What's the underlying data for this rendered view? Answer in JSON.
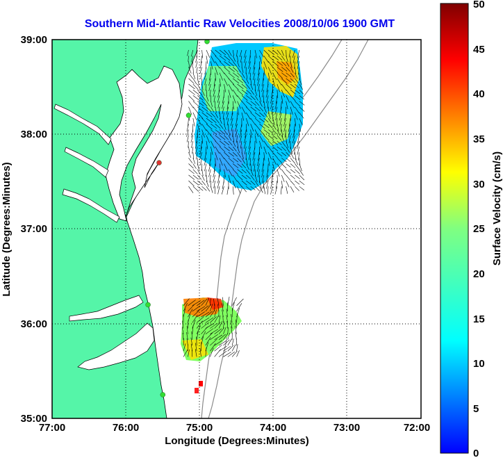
{
  "title": "Southern Mid-Atlantic Raw Velocities 2008/10/06 1900 GMT",
  "x_axis": {
    "label": "Longitude (Degrees:Minutes)",
    "ticks": [
      "77:00",
      "76:00",
      "75:00",
      "74:00",
      "73:00",
      "72:00"
    ]
  },
  "y_axis": {
    "label": "Latitude (Degrees:Minutes)",
    "ticks": [
      "39:00",
      "38:00",
      "37:00",
      "36:00",
      "35:00"
    ]
  },
  "colorbar": {
    "label": "Surface Velocity (cm/s)",
    "ticks": [
      "50",
      "45",
      "40",
      "35",
      "30",
      "25",
      "20",
      "15",
      "10",
      "5",
      "0"
    ],
    "min": 0,
    "max": 50,
    "colormap": "jet"
  },
  "colors": {
    "land": "#55f5a8",
    "ocean": "#ffffff",
    "title": "#0000ee",
    "bathymetry": "#8a8a8a",
    "station_active": "#33dd33",
    "station_inactive": "#dd3333"
  },
  "chart_data": {
    "type": "heatmap",
    "description_fields": {
      "lon_range": [
        -77,
        -72
      ],
      "lat_range": [
        35,
        39
      ],
      "grid": "dotted"
    },
    "regions": [
      {
        "name": "northern_field",
        "lon_range": [
          -75.15,
          -73.6
        ],
        "lat_range": [
          37.45,
          38.95
        ],
        "typical_speed_cm_s": [
          5,
          30
        ]
      },
      {
        "name": "southern_field",
        "lon_range": [
          -75.22,
          -74.45
        ],
        "lat_range": [
          35.65,
          36.25
        ],
        "typical_speed_cm_s": [
          18,
          40
        ]
      }
    ],
    "stations": [
      {
        "lon": -74.9,
        "lat": 38.98,
        "status": "active"
      },
      {
        "lon": -75.15,
        "lat": 38.2,
        "status": "active"
      },
      {
        "lon": -75.55,
        "lat": 37.7,
        "status": "inactive"
      },
      {
        "lon": -75.7,
        "lat": 36.2,
        "status": "active"
      },
      {
        "lon": -75.5,
        "lat": 35.25,
        "status": "active"
      }
    ]
  }
}
